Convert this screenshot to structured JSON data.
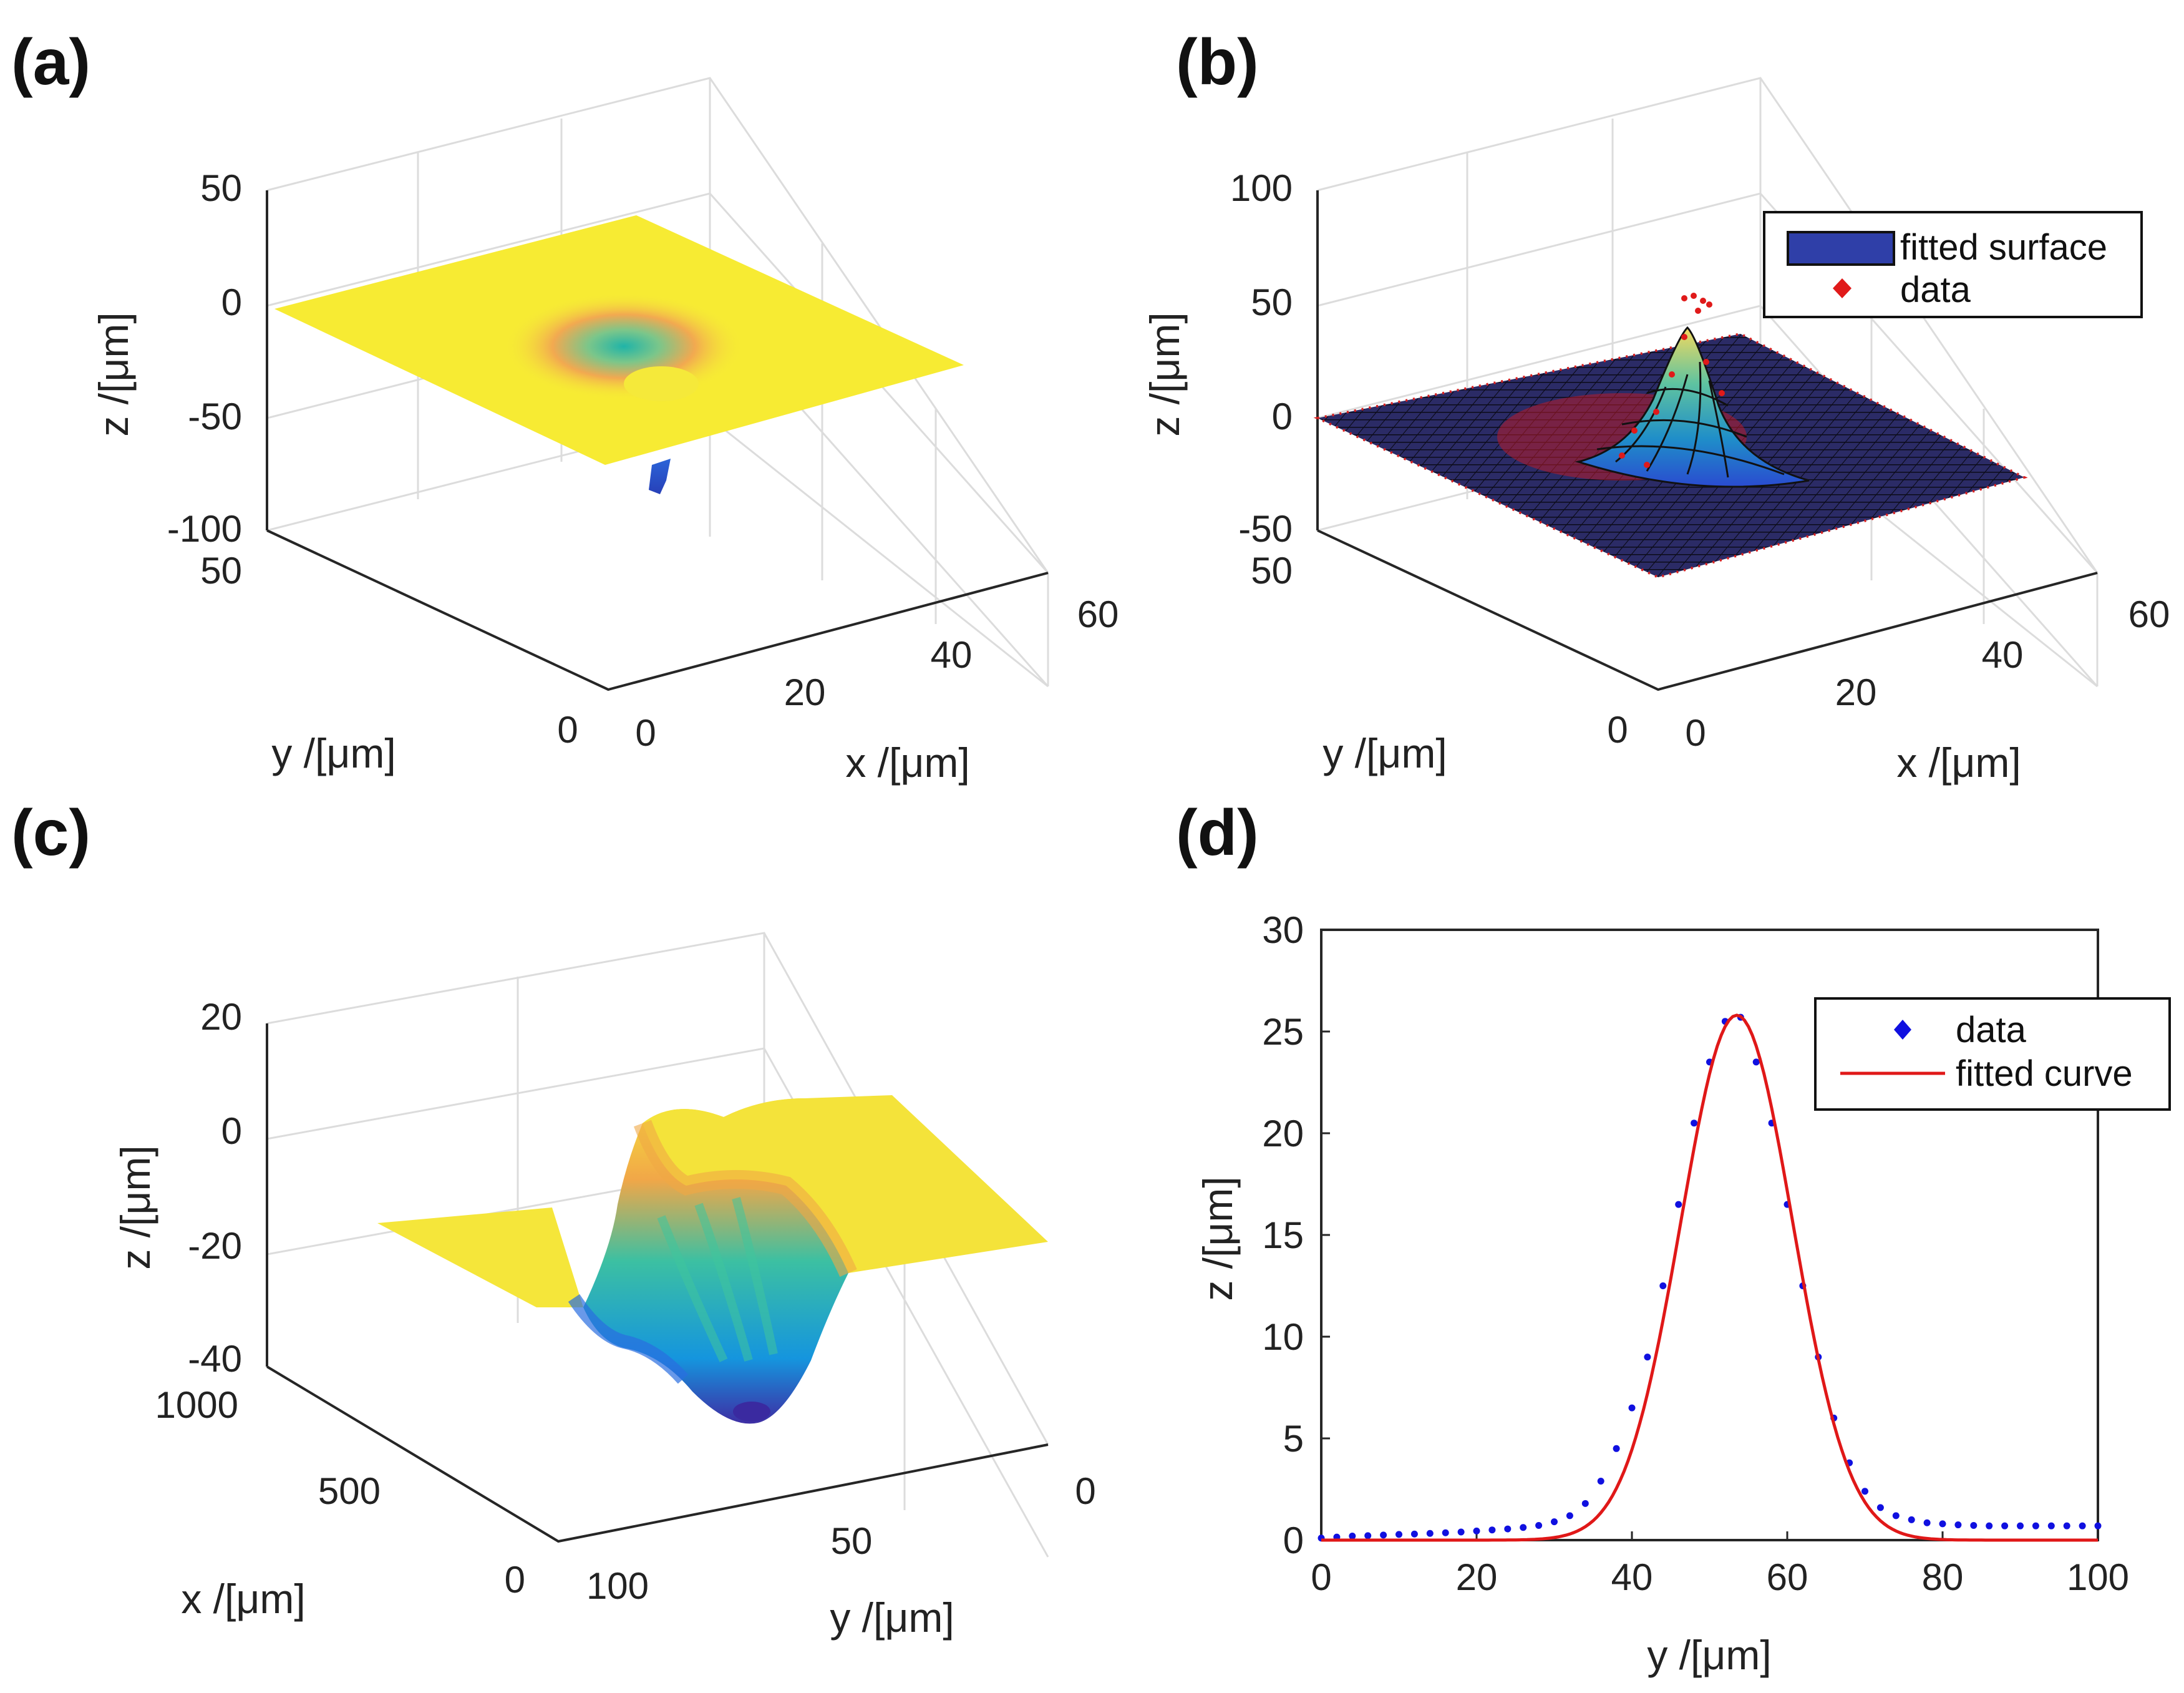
{
  "figure": {
    "panels": [
      {
        "label": "(a)",
        "type": "surface3d",
        "zlabel": "z /[μm]",
        "ylabel": "y /[μm]",
        "xlabel": "x /[μm]",
        "zticks": [
          "50",
          "0",
          "-50",
          "-100"
        ],
        "yticks": [
          "50",
          "0"
        ],
        "xticks": [
          "0",
          "20",
          "40",
          "60"
        ]
      },
      {
        "label": "(b)",
        "type": "surface3d",
        "zlabel": "z /[μm]",
        "ylabel": "y /[μm]",
        "xlabel": "x /[μm]",
        "zticks": [
          "100",
          "50",
          "0",
          "-50"
        ],
        "yticks": [
          "50",
          "0"
        ],
        "xticks": [
          "0",
          "20",
          "40",
          "60"
        ],
        "legend": [
          "fitted surface",
          "data"
        ]
      },
      {
        "label": "(c)",
        "type": "surface3d",
        "zlabel": "z /[μm]",
        "ylabel": "x /[μm]",
        "xlabel": "y /[μm]",
        "zticks": [
          "20",
          "0",
          "-20",
          "-40"
        ],
        "yticks": [
          "1000",
          "500",
          "0"
        ],
        "xticks": [
          "100",
          "50",
          "0"
        ]
      },
      {
        "label": "(d)",
        "type": "line",
        "xlabel": "y /[μm]",
        "ylabel": "z /[μm]",
        "legend": [
          "data",
          "fitted curve"
        ]
      }
    ]
  },
  "chart_data": [
    {
      "type": "surface3d",
      "panel": "(a)",
      "title": "",
      "xlabel": "x /[μm]",
      "ylabel": "y /[μm]",
      "zlabel": "z /[μm]",
      "xlim": [
        0,
        60
      ],
      "ylim": [
        0,
        50
      ],
      "zlim": [
        -100,
        50
      ],
      "surface": "flat plane at z≈0 with a narrow pit reaching about z=-80 near x≈30, y≈25",
      "colormap": "parula"
    },
    {
      "type": "surface3d",
      "panel": "(b)",
      "xlabel": "x /[μm]",
      "ylabel": "y /[μm]",
      "zlabel": "z /[μm]",
      "xlim": [
        0,
        60
      ],
      "ylim": [
        0,
        50
      ],
      "zlim": [
        -50,
        100
      ],
      "surface": "gaussian peak on flat base",
      "peak_height": 80,
      "legend": [
        "fitted surface",
        "data"
      ],
      "colormap": "parula"
    },
    {
      "type": "surface3d",
      "panel": "(c)",
      "xlabel": "y /[μm]",
      "ylabel": "x /[μm]",
      "zlabel": "z /[μm]",
      "xlim": [
        0,
        100
      ],
      "ylim": [
        0,
        1000
      ],
      "zlim": [
        -40,
        20
      ],
      "surface": "trench along x, depth about -35 near y≈55",
      "colormap": "parula"
    },
    {
      "type": "line",
      "panel": "(d)",
      "title": "",
      "xlabel": "y /[μm]",
      "ylabel": "z /[μm]",
      "xlim": [
        0,
        100
      ],
      "ylim": [
        0,
        30
      ],
      "xticks": [
        0,
        20,
        40,
        60,
        80,
        100
      ],
      "yticks": [
        0,
        5,
        10,
        15,
        20,
        25,
        30
      ],
      "legend_position": "top-right",
      "series": [
        {
          "name": "data",
          "style": "points",
          "color": "#1010e0",
          "x": [
            0,
            2,
            4,
            6,
            8,
            10,
            12,
            14,
            16,
            18,
            20,
            22,
            24,
            26,
            28,
            30,
            32,
            34,
            36,
            38,
            40,
            42,
            44,
            46,
            48,
            50,
            52,
            54,
            56,
            58,
            60,
            62,
            64,
            66,
            68,
            70,
            72,
            74,
            76,
            78,
            80,
            82,
            84,
            86,
            88,
            90,
            92,
            94,
            96,
            98,
            100
          ],
          "y": [
            0.1,
            0.15,
            0.2,
            0.22,
            0.25,
            0.28,
            0.3,
            0.33,
            0.36,
            0.4,
            0.45,
            0.5,
            0.55,
            0.62,
            0.72,
            0.9,
            1.2,
            1.8,
            2.9,
            4.5,
            6.5,
            9.0,
            12.5,
            16.5,
            20.5,
            23.5,
            25.5,
            25.7,
            23.5,
            20.5,
            16.5,
            12.5,
            9.0,
            6.0,
            3.8,
            2.4,
            1.6,
            1.2,
            1.0,
            0.85,
            0.8,
            0.75,
            0.72,
            0.7,
            0.7,
            0.7,
            0.7,
            0.7,
            0.7,
            0.7,
            0.7
          ]
        },
        {
          "name": "fitted curve",
          "style": "line",
          "color": "#e01818",
          "model": "gaussian",
          "amplitude": 25.8,
          "center": 53.5,
          "sigma": 7.2
        }
      ]
    }
  ]
}
